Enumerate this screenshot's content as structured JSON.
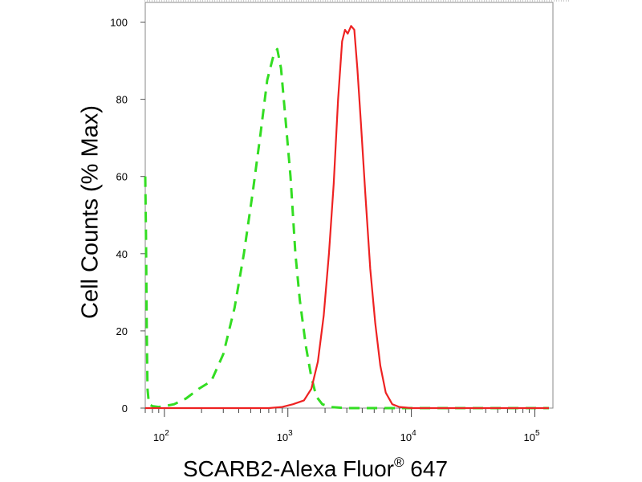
{
  "chart_data": {
    "type": "line",
    "xlabel": "SCARB2-Alexa Fluor",
    "xlabel_mark": "®",
    "xlabel_suffix": " 647",
    "ylabel": "Cell Counts (% Max)",
    "x_scale": "log",
    "xlim": [
      70,
      140000
    ],
    "ylim": [
      0,
      105
    ],
    "x_ticks": [
      {
        "base": "10",
        "exp": "2",
        "value": 100
      },
      {
        "base": "10",
        "exp": "3",
        "value": 1000
      },
      {
        "base": "10",
        "exp": "4",
        "value": 10000
      },
      {
        "base": "10",
        "exp": "5",
        "value": 100000
      }
    ],
    "y_ticks": [
      "0",
      "20",
      "40",
      "60",
      "80",
      "100"
    ],
    "y_tick_values": [
      0,
      20,
      40,
      60,
      80,
      100
    ],
    "grid": false,
    "series": [
      {
        "color": "#33dd22",
        "style": "dashed",
        "points": [
          [
            70,
            60
          ],
          [
            71,
            45
          ],
          [
            72,
            20
          ],
          [
            73,
            5
          ],
          [
            75,
            1
          ],
          [
            80,
            0.5
          ],
          [
            90,
            0.3
          ],
          [
            100,
            0.5
          ],
          [
            120,
            1
          ],
          [
            150,
            2.5
          ],
          [
            190,
            5
          ],
          [
            240,
            7
          ],
          [
            300,
            14
          ],
          [
            370,
            26
          ],
          [
            440,
            40
          ],
          [
            520,
            56
          ],
          [
            600,
            71
          ],
          [
            680,
            85
          ],
          [
            760,
            91
          ],
          [
            820,
            93
          ],
          [
            880,
            88
          ],
          [
            950,
            76
          ],
          [
            1050,
            60
          ],
          [
            1150,
            40
          ],
          [
            1250,
            28
          ],
          [
            1400,
            16
          ],
          [
            1550,
            8
          ],
          [
            1700,
            3
          ],
          [
            1900,
            1
          ],
          [
            2200,
            0.3
          ],
          [
            3000,
            0
          ],
          [
            10000,
            0
          ],
          [
            130000,
            0
          ]
        ]
      },
      {
        "color": "#ee2222",
        "style": "solid",
        "points": [
          [
            70,
            0
          ],
          [
            700,
            0
          ],
          [
            900,
            0.3
          ],
          [
            1100,
            1
          ],
          [
            1350,
            2
          ],
          [
            1550,
            5
          ],
          [
            1750,
            12
          ],
          [
            1950,
            24
          ],
          [
            2150,
            40
          ],
          [
            2350,
            58
          ],
          [
            2550,
            80
          ],
          [
            2750,
            95
          ],
          [
            2900,
            98
          ],
          [
            3050,
            97
          ],
          [
            3250,
            99
          ],
          [
            3450,
            98
          ],
          [
            3650,
            88
          ],
          [
            3900,
            74
          ],
          [
            4250,
            55
          ],
          [
            4650,
            36
          ],
          [
            5100,
            22
          ],
          [
            5600,
            11
          ],
          [
            6200,
            4
          ],
          [
            7000,
            1
          ],
          [
            8000,
            0.3
          ],
          [
            10000,
            0
          ],
          [
            130000,
            0
          ]
        ]
      }
    ]
  }
}
